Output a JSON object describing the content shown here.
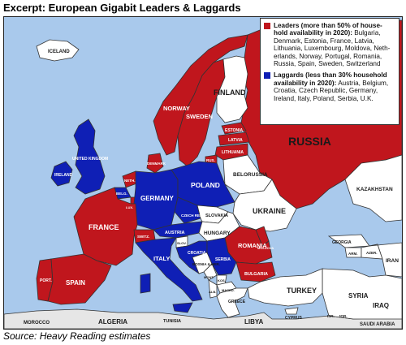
{
  "title": "Excerpt: European Gigabit Leaders & Laggards",
  "source": "Source: Heavy Reading estimates",
  "colors": {
    "leader": "#c0161d",
    "laggard": "#0f1fb5",
    "neutral": "#ffffff",
    "sea": "#a9c9ec",
    "other_land": "#e6e6e6"
  },
  "legend": {
    "leaders": {
      "heading": "Leaders (more than 50% of house-hold availability in 2020):",
      "countries": "Bulgaria, Denmark, Estonia, France, Latvia, Lithuania, Luxembourg, Moldova, Neth-erlands, Norway, Portugal, Romania, Russia, Spain, Sweden, Switzerland"
    },
    "laggards": {
      "heading": "Laggards (less than 30% household availability in 2020):",
      "countries": "Austria, Belgium, Croatia, Czech Republic, Germany, Ireland, Italy, Poland, Serbia, U.K."
    }
  },
  "labels": {
    "iceland": "ICELAND",
    "finland": "FINLAND",
    "norway": "NORWAY",
    "sweden": "SWEDEN",
    "russia": "RUSSIA",
    "estonia": "ESTONIA",
    "latvia": "LATVIA",
    "lithuania": "LITHUANIA",
    "russia_small": "RUS.",
    "belorussia": "BELORUSSIA",
    "kazakhstan": "KAZAKHSTAN",
    "ireland": "IRELAND",
    "uk": "UNITED KINGDOM",
    "denmark": "DENMARK",
    "netherlands": "NETH.",
    "belgium": "BELG.",
    "lux": "LUX.",
    "germany": "GERMANY",
    "poland": "POLAND",
    "czech": "CZECH REPUBLIC",
    "ukraine": "UKRAINE",
    "slovakia": "SLOVAKIA",
    "moldova": "MOLDOVA",
    "austria": "AUSTRIA",
    "hungary": "HUNGARY",
    "france": "FRANCE",
    "switzerland": "SWITZ.",
    "slovenia": "SLOV.",
    "croatia": "CROATIA",
    "romania": "ROMANIA",
    "georgia": "GEORGIA",
    "armenia": "ARM.",
    "azerbaijan": "AZER.",
    "iran": "IRAN",
    "italy": "ITALY",
    "bosnia": "BOSNIA & HER.",
    "serbia": "SERBIA",
    "montenegro": "MONT.",
    "kosovo": "KOS.",
    "bulgaria": "BULGARIA",
    "macedonia": "MACED.",
    "albania": "ALB.",
    "greece": "GREECE",
    "portugal": "PORT.",
    "spain": "SPAIN",
    "turkey": "TURKEY",
    "syria": "SYRIA",
    "iraq": "IRAQ",
    "cyprus": "CYPRUS",
    "morocco": "MOROCCO",
    "algeria": "ALGERIA",
    "tunisia": "TUNISIA",
    "libya": "LIBYA",
    "israel": "ISR.",
    "jordan": "JOR.",
    "saudi": "SAUDI ARABIA"
  }
}
